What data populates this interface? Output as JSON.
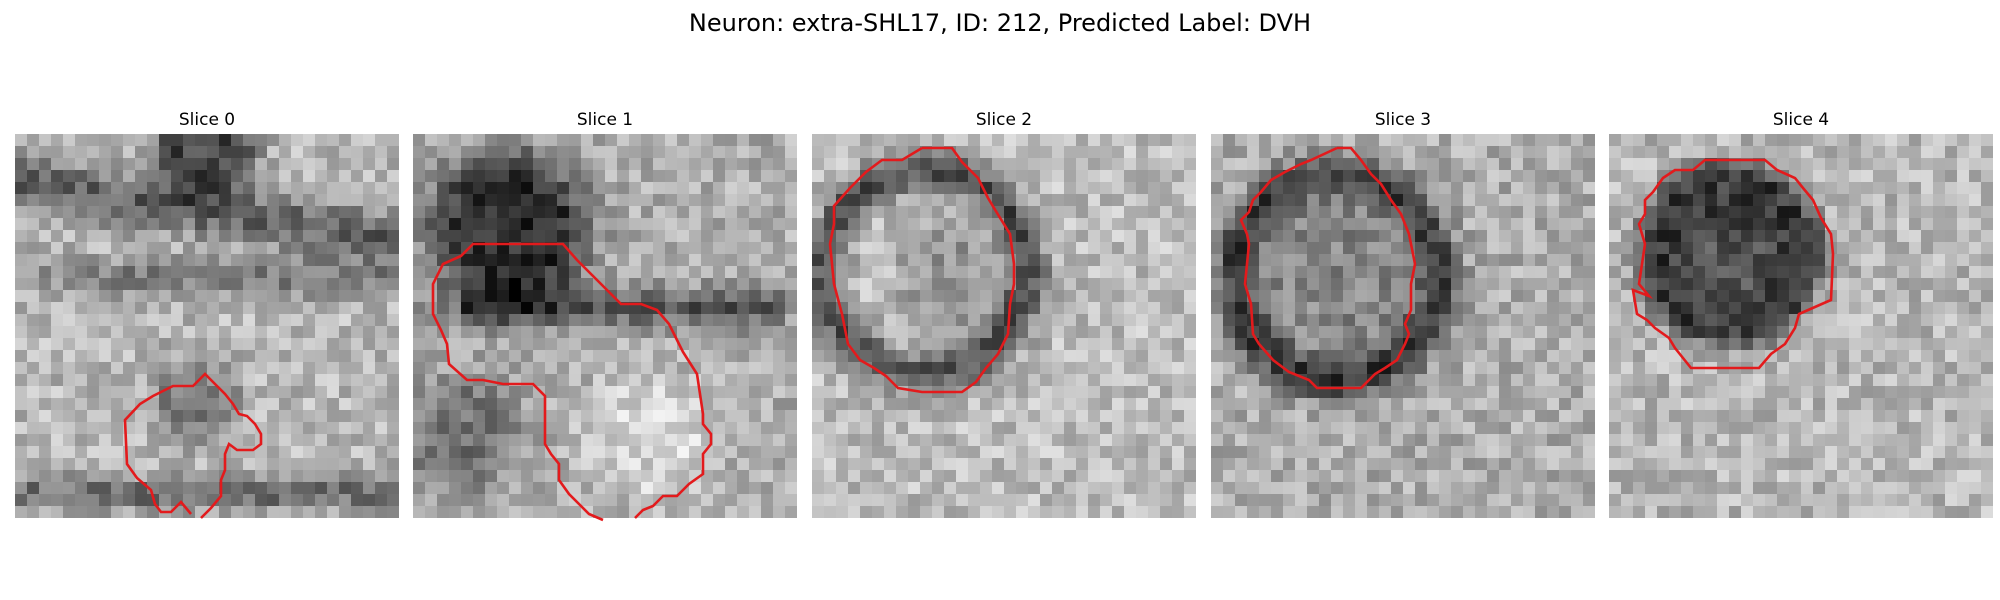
{
  "figure": {
    "title": "Neuron: extra-SHL17, ID: 212, Predicted Label: DVH",
    "contour_color": "#e31a1c",
    "colormap": "gray"
  },
  "panels": [
    {
      "title": "Slice 0"
    },
    {
      "title": "Slice 1"
    },
    {
      "title": "Slice 2"
    },
    {
      "title": "Slice 3"
    },
    {
      "title": "Slice 4"
    }
  ]
}
